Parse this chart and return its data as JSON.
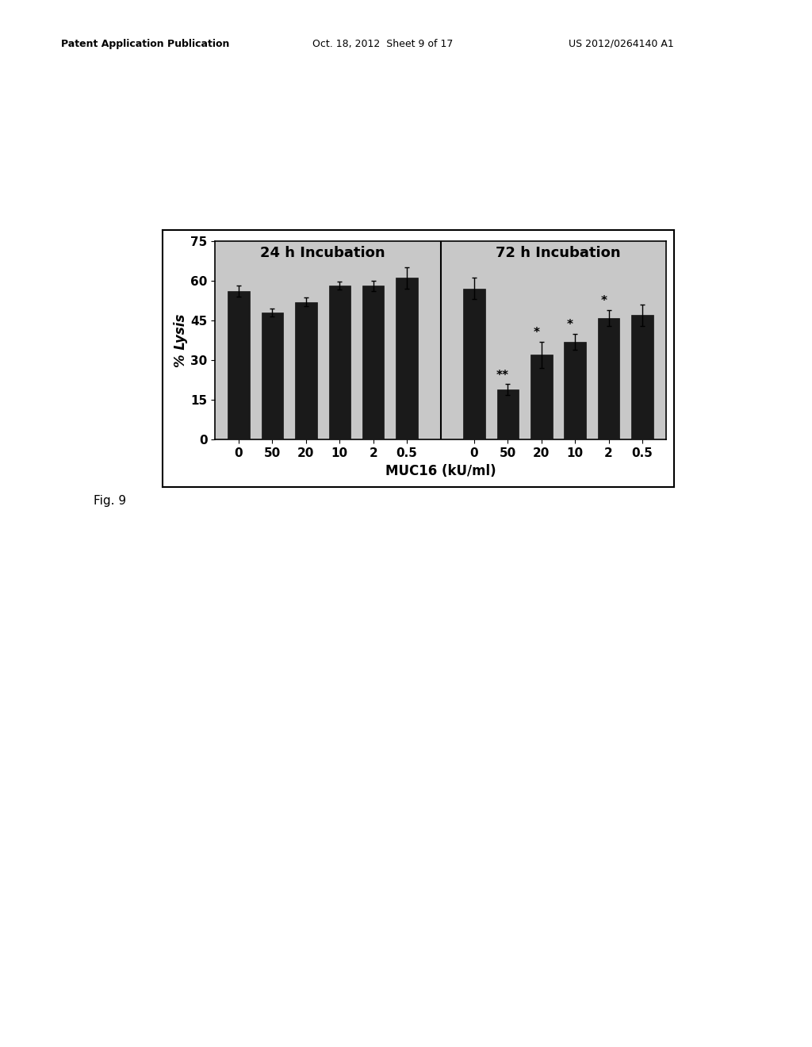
{
  "panel1_label": "24 h Incubation",
  "panel2_label": "72 h Incubation",
  "xlabel": "MUC16 (kU/ml)",
  "ylabel": "% Lysis",
  "yticks": [
    0,
    15,
    30,
    45,
    60,
    75
  ],
  "ylim": [
    0,
    75
  ],
  "xtick_labels": [
    "0",
    "50",
    "20",
    "10",
    "2",
    "0.5"
  ],
  "bar_color": "#1a1a1a",
  "bar_width": 0.65,
  "panel1_values": [
    56,
    48,
    52,
    58,
    58,
    61
  ],
  "panel1_errors": [
    2.0,
    1.5,
    1.5,
    1.5,
    2.0,
    4.0
  ],
  "panel2_values": [
    57,
    19,
    32,
    37,
    46,
    47
  ],
  "panel2_errors": [
    4.0,
    2.0,
    5.0,
    3.0,
    3.0,
    4.0
  ],
  "panel2_star_labels": [
    "",
    "**",
    "*",
    "*",
    "*",
    ""
  ],
  "plot_bg_color": "#c8c8c8",
  "title_fontsize": 13,
  "axis_fontsize": 12,
  "tick_fontsize": 11,
  "star_fontsize": 11,
  "fig_caption": "Fig. 9",
  "fig_width": 10.24,
  "fig_height": 13.2,
  "header_left": "Patent Application Publication",
  "header_mid": "Oct. 18, 2012  Sheet 9 of 17",
  "header_right": "US 2012/0264140 A1"
}
